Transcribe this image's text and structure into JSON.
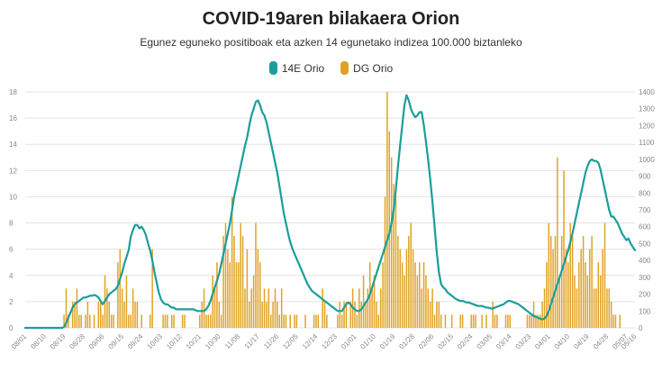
{
  "header": {
    "title": "COVID-19aren bilakaera Orion",
    "subtitle": "Egunez eguneko positiboak eta azken 14 egunetako indizea 100.000 biztanleko"
  },
  "colors": {
    "line": "#1a9e9a",
    "bars": "#e0a224",
    "grid": "#e3e3e3",
    "axis_text": "#888888"
  },
  "chart_data": {
    "type": "bar+line",
    "x_tick_labels": [
      "08/01",
      "08/10",
      "08/19",
      "08/28",
      "09/06",
      "09/15",
      "09/24",
      "10/03",
      "10/12",
      "10/21",
      "10/30",
      "11/08",
      "11/17",
      "11/26",
      "12/05",
      "12/14",
      "12/23",
      "01/01",
      "01/10",
      "01/19",
      "01/28",
      "02/06",
      "02/15",
      "02/24",
      "03/05",
      "03/14",
      "03/23",
      "04/01",
      "04/10",
      "04/19",
      "04/28",
      "05/07",
      "05/16"
    ],
    "left_axis": {
      "min": 0,
      "max": 18,
      "ticks": [
        0,
        2,
        4,
        6,
        8,
        10,
        12,
        14,
        16,
        18
      ]
    },
    "right_axis": {
      "min": 0,
      "max": 1400,
      "ticks": [
        0,
        100,
        200,
        300,
        400,
        500,
        600,
        700,
        800,
        900,
        1000,
        1100,
        1200,
        1300,
        1400
      ]
    },
    "series": [
      {
        "name": "14E Orio",
        "type": "line",
        "axis": "right",
        "x_start_date": "08/01",
        "values": [
          0,
          0,
          0,
          0,
          0,
          0,
          0,
          0,
          0,
          0,
          0,
          0,
          0,
          0,
          0,
          0,
          0,
          0,
          5,
          30,
          60,
          90,
          120,
          140,
          150,
          160,
          170,
          180,
          180,
          185,
          190,
          190,
          195,
          190,
          180,
          160,
          140,
          160,
          180,
          200,
          210,
          220,
          230,
          250,
          290,
          330,
          380,
          420,
          460,
          540,
          580,
          610,
          610,
          590,
          600,
          580,
          550,
          500,
          460,
          400,
          330,
          270,
          210,
          170,
          150,
          140,
          140,
          130,
          120,
          120,
          110,
          110,
          110,
          110,
          110,
          110,
          110,
          110,
          110,
          105,
          100,
          100,
          100,
          100,
          110,
          130,
          160,
          200,
          240,
          280,
          320,
          380,
          440,
          500,
          560,
          620,
          700,
          780,
          840,
          900,
          960,
          1020,
          1080,
          1130,
          1200,
          1260,
          1300,
          1340,
          1350,
          1320,
          1280,
          1260,
          1220,
          1160,
          1100,
          1040,
          980,
          920,
          840,
          760,
          680,
          620,
          560,
          510,
          470,
          440,
          410,
          380,
          350,
          320,
          290,
          260,
          240,
          220,
          210,
          200,
          190,
          180,
          170,
          160,
          150,
          140,
          130,
          120,
          110,
          100,
          100,
          100,
          120,
          140,
          150,
          140,
          120,
          110,
          100,
          100,
          110,
          130,
          150,
          170,
          200,
          240,
          280,
          320,
          360,
          400,
          440,
          480,
          520,
          560,
          620,
          700,
          820,
          960,
          1080,
          1200,
          1320,
          1380,
          1350,
          1300,
          1270,
          1250,
          1260,
          1280,
          1280,
          1200,
          1100,
          1000,
          880,
          750,
          600,
          450,
          330,
          260,
          240,
          230,
          210,
          200,
          190,
          180,
          170,
          165,
          160,
          160,
          155,
          150,
          150,
          145,
          140,
          135,
          130,
          130,
          130,
          125,
          120,
          120,
          115,
          115,
          120,
          125,
          130,
          135,
          140,
          150,
          160,
          160,
          155,
          150,
          145,
          140,
          130,
          120,
          110,
          100,
          90,
          80,
          70,
          65,
          60,
          55,
          50,
          55,
          70,
          100,
          140,
          180,
          220,
          260,
          300,
          340,
          380,
          420,
          460,
          510,
          560,
          620,
          680,
          740,
          800,
          860,
          920,
          960,
          990,
          1000,
          990,
          990,
          980,
          940,
          880,
          820,
          760,
          700,
          660,
          660,
          640,
          620,
          590,
          560,
          540,
          520,
          530,
          500,
          480,
          460
        ]
      },
      {
        "name": "DG Orio",
        "type": "bar",
        "axis": "left",
        "x_start_date": "08/01",
        "values": [
          0,
          0,
          0,
          0,
          0,
          0,
          0,
          0,
          0,
          0,
          0,
          0,
          0,
          0,
          0,
          0,
          0,
          0,
          1,
          3,
          1,
          0,
          2,
          2,
          3,
          1,
          1,
          0,
          1,
          2,
          1,
          0,
          1,
          0,
          2,
          2,
          1,
          4,
          3,
          2,
          1,
          1,
          0,
          5,
          6,
          3,
          2,
          4,
          1,
          1,
          3,
          2,
          2,
          0,
          1,
          0,
          0,
          0,
          1,
          6,
          0,
          0,
          0,
          0,
          1,
          1,
          1,
          0,
          1,
          1,
          0,
          0,
          0,
          1,
          1,
          0,
          0,
          0,
          0,
          0,
          0,
          1,
          2,
          3,
          1,
          1,
          1,
          4,
          3,
          5,
          2,
          1,
          7,
          8,
          6,
          5,
          10,
          7,
          5,
          5,
          8,
          7,
          3,
          6,
          2,
          3,
          4,
          8,
          6,
          5,
          2,
          3,
          2,
          3,
          1,
          2,
          3,
          2,
          1,
          3,
          1,
          1,
          0,
          1,
          0,
          1,
          1,
          0,
          0,
          0,
          1,
          0,
          0,
          0,
          1,
          1,
          1,
          0,
          3,
          2,
          1,
          0,
          0,
          0,
          0,
          1,
          2,
          1,
          2,
          2,
          0,
          2,
          3,
          2,
          1,
          3,
          2,
          4,
          2,
          3,
          5,
          3,
          4,
          2,
          1,
          3,
          5,
          10,
          18,
          15,
          13,
          11,
          10,
          7,
          6,
          5,
          4,
          6,
          7,
          8,
          6,
          5,
          4,
          5,
          3,
          5,
          4,
          3,
          2,
          3,
          1,
          2,
          2,
          1,
          0,
          1,
          0,
          0,
          1,
          0,
          0,
          0,
          1,
          1,
          0,
          0,
          0,
          1,
          1,
          1,
          0,
          0,
          1,
          0,
          1,
          0,
          0,
          2,
          1,
          1,
          0,
          0,
          0,
          1,
          1,
          1,
          0,
          0,
          0,
          0,
          0,
          0,
          0,
          1,
          1,
          1,
          2,
          1,
          1,
          1,
          2,
          3,
          5,
          8,
          7,
          6,
          7,
          13,
          4,
          7,
          12,
          6,
          5,
          8,
          7,
          4,
          3,
          5,
          6,
          7,
          5,
          4,
          6,
          7,
          3,
          3,
          5,
          4,
          6,
          8,
          3,
          3,
          2,
          1,
          1,
          0,
          1
        ]
      }
    ]
  }
}
